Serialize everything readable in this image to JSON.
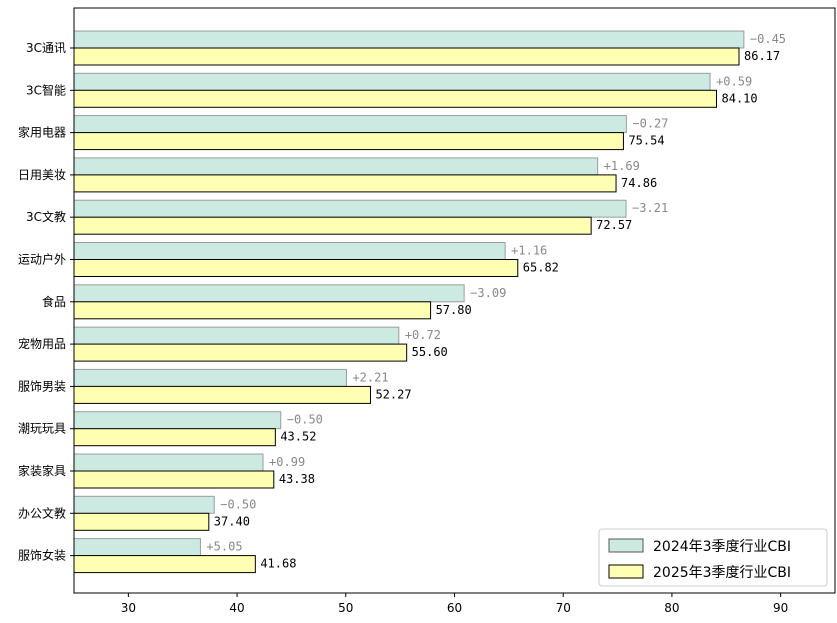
{
  "chart_data": {
    "type": "bar",
    "orientation": "horizontal",
    "categories": [
      "3C通讯",
      "3C智能",
      "家用电器",
      "日用美妆",
      "3C文教",
      "运动户外",
      "食品",
      "宠物用品",
      "服饰男装",
      "潮玩玩具",
      "家装家具",
      "办公文教",
      "服饰女装"
    ],
    "series": [
      {
        "name": "2024年3季度行业CBI",
        "color": "#cdeae2",
        "values": [
          86.62,
          83.51,
          75.81,
          73.17,
          75.78,
          64.66,
          60.89,
          54.88,
          50.06,
          44.02,
          42.39,
          37.9,
          36.63
        ]
      },
      {
        "name": "2025年3季度行业CBI",
        "color": "#ffffb3",
        "values": [
          86.17,
          84.1,
          75.54,
          74.86,
          72.57,
          65.82,
          57.8,
          55.6,
          52.27,
          43.52,
          43.38,
          37.4,
          41.68
        ]
      }
    ],
    "value_labels": [
      "86.17",
      "84.10",
      "75.54",
      "74.86",
      "72.57",
      "65.82",
      "57.80",
      "55.60",
      "52.27",
      "43.52",
      "43.38",
      "37.40",
      "41.68"
    ],
    "delta_labels": [
      "−0.45",
      "+0.59",
      "−0.27",
      "+1.69",
      "−3.21",
      "+1.16",
      "−3.09",
      "+0.72",
      "+2.21",
      "−0.50",
      "+0.99",
      "−0.50",
      "+5.05"
    ],
    "xlim": [
      25,
      95
    ],
    "xticks": [
      30,
      40,
      50,
      60,
      70,
      80,
      90
    ],
    "legend_position": "lower-right",
    "grid": false
  }
}
